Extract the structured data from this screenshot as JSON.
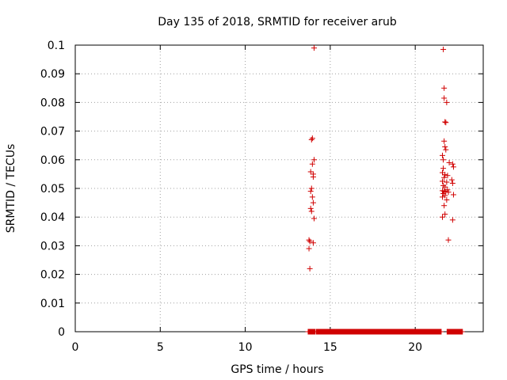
{
  "chart_data": {
    "type": "scatter",
    "title": "Day 135 of 2018, SRMTID for receiver arub",
    "xlabel": "GPS time / hours",
    "ylabel": "SRMTID / TECUs",
    "xlim": [
      0,
      24
    ],
    "ylim": [
      0,
      0.1
    ],
    "grid": true,
    "x_ticks": [
      0,
      5,
      10,
      15,
      20
    ],
    "x_tick_labels": [
      "0",
      "5",
      "10",
      "15",
      "20"
    ],
    "y_ticks": [
      0,
      0.01,
      0.02,
      0.03,
      0.04,
      0.05,
      0.06,
      0.07,
      0.08,
      0.09,
      0.1
    ],
    "y_tick_labels": [
      "0",
      "0.01",
      "0.02",
      "0.03",
      "0.04",
      "0.05",
      "0.06",
      "0.07",
      "0.08",
      "0.09",
      "0.1"
    ],
    "marker": "+",
    "color": "#d00000",
    "series": [
      {
        "name": "SRMTID",
        "points": [
          [
            14.05,
            0.099
          ],
          [
            13.95,
            0.0675
          ],
          [
            13.9,
            0.067
          ],
          [
            14.05,
            0.06
          ],
          [
            13.95,
            0.0585
          ],
          [
            13.85,
            0.0558
          ],
          [
            14.0,
            0.055
          ],
          [
            14.0,
            0.054
          ],
          [
            13.9,
            0.05
          ],
          [
            13.85,
            0.049
          ],
          [
            13.95,
            0.047
          ],
          [
            14.0,
            0.045
          ],
          [
            13.85,
            0.043
          ],
          [
            13.9,
            0.042
          ],
          [
            14.05,
            0.0395
          ],
          [
            13.75,
            0.032
          ],
          [
            13.8,
            0.0315
          ],
          [
            14.0,
            0.031
          ],
          [
            13.75,
            0.029
          ],
          [
            13.8,
            0.022
          ],
          [
            21.65,
            0.0985
          ],
          [
            21.7,
            0.085
          ],
          [
            21.7,
            0.0815
          ],
          [
            21.85,
            0.08
          ],
          [
            21.75,
            0.0732
          ],
          [
            21.8,
            0.073
          ],
          [
            21.7,
            0.0665
          ],
          [
            21.75,
            0.0645
          ],
          [
            21.8,
            0.0635
          ],
          [
            21.6,
            0.0615
          ],
          [
            21.65,
            0.06
          ],
          [
            22.0,
            0.059
          ],
          [
            22.2,
            0.0585
          ],
          [
            22.25,
            0.0575
          ],
          [
            21.65,
            0.057
          ],
          [
            21.6,
            0.0555
          ],
          [
            21.75,
            0.0548
          ],
          [
            21.9,
            0.0545
          ],
          [
            21.7,
            0.0538
          ],
          [
            22.15,
            0.053
          ],
          [
            21.6,
            0.0525
          ],
          [
            21.85,
            0.0522
          ],
          [
            22.2,
            0.0518
          ],
          [
            21.65,
            0.051
          ],
          [
            21.75,
            0.0505
          ],
          [
            21.9,
            0.0495
          ],
          [
            21.6,
            0.0492
          ],
          [
            21.7,
            0.049
          ],
          [
            21.8,
            0.0488
          ],
          [
            21.95,
            0.0487
          ],
          [
            21.65,
            0.0482
          ],
          [
            22.25,
            0.0478
          ],
          [
            21.75,
            0.0475
          ],
          [
            21.6,
            0.047
          ],
          [
            21.85,
            0.046
          ],
          [
            21.7,
            0.044
          ],
          [
            21.75,
            0.041
          ],
          [
            21.6,
            0.04
          ],
          [
            22.2,
            0.039
          ],
          [
            21.95,
            0.032
          ],
          [
            13.7,
            0.0
          ],
          [
            13.85,
            0.0
          ],
          [
            14.1,
            0.0
          ],
          [
            14.4,
            0.0
          ],
          [
            14.7,
            0.0
          ],
          [
            15.0,
            0.0
          ],
          [
            15.3,
            0.0
          ],
          [
            15.6,
            0.0
          ],
          [
            15.9,
            0.0
          ],
          [
            16.2,
            0.0
          ],
          [
            16.5,
            0.0
          ],
          [
            16.8,
            0.0
          ],
          [
            17.1,
            0.0
          ],
          [
            17.4,
            0.0
          ],
          [
            17.7,
            0.0
          ],
          [
            18.0,
            0.0
          ],
          [
            18.3,
            0.0
          ],
          [
            18.6,
            0.0
          ],
          [
            18.9,
            0.0
          ],
          [
            19.2,
            0.0
          ],
          [
            19.5,
            0.0
          ],
          [
            19.8,
            0.0
          ],
          [
            20.1,
            0.0
          ],
          [
            20.4,
            0.0
          ],
          [
            20.7,
            0.0
          ],
          [
            21.0,
            0.0
          ],
          [
            21.3,
            0.0
          ],
          [
            21.5,
            0.0
          ],
          [
            22.0,
            0.0
          ],
          [
            22.2,
            0.0
          ],
          [
            22.4,
            0.0
          ],
          [
            22.6,
            0.0
          ],
          [
            22.75,
            0.0
          ]
        ]
      }
    ]
  }
}
